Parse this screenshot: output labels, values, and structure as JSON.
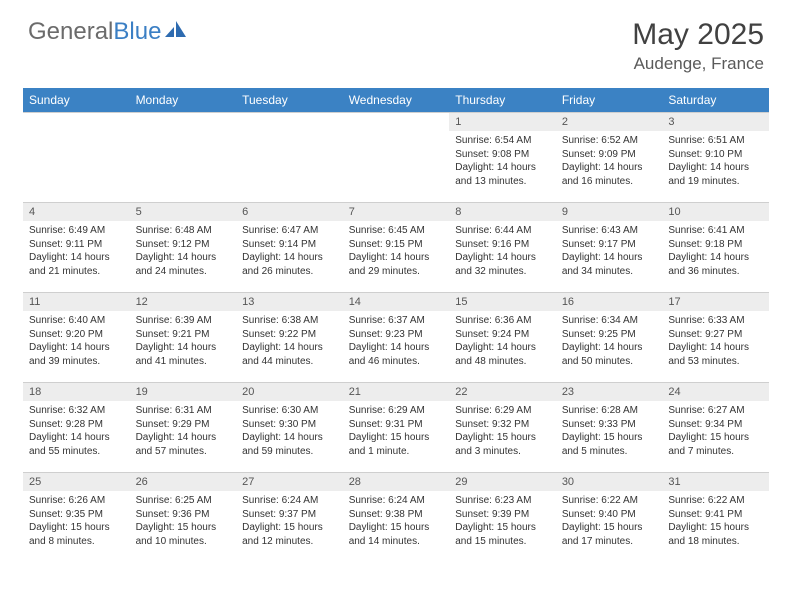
{
  "brand": {
    "part1": "General",
    "part2": "Blue"
  },
  "title": "May 2025",
  "location": "Audenge, France",
  "colors": {
    "header_bg": "#3b82c4",
    "header_text": "#ffffff",
    "daynum_bg": "#ededed",
    "border": "#cfcfcf",
    "logo_gray": "#6b6b6b",
    "logo_blue": "#3b7fc4"
  },
  "weekdays": [
    "Sunday",
    "Monday",
    "Tuesday",
    "Wednesday",
    "Thursday",
    "Friday",
    "Saturday"
  ],
  "weeks": [
    [
      {
        "empty": true
      },
      {
        "empty": true
      },
      {
        "empty": true
      },
      {
        "empty": true
      },
      {
        "n": "1",
        "sr": "Sunrise: 6:54 AM",
        "ss": "Sunset: 9:08 PM",
        "d1": "Daylight: 14 hours",
        "d2": "and 13 minutes."
      },
      {
        "n": "2",
        "sr": "Sunrise: 6:52 AM",
        "ss": "Sunset: 9:09 PM",
        "d1": "Daylight: 14 hours",
        "d2": "and 16 minutes."
      },
      {
        "n": "3",
        "sr": "Sunrise: 6:51 AM",
        "ss": "Sunset: 9:10 PM",
        "d1": "Daylight: 14 hours",
        "d2": "and 19 minutes."
      }
    ],
    [
      {
        "n": "4",
        "sr": "Sunrise: 6:49 AM",
        "ss": "Sunset: 9:11 PM",
        "d1": "Daylight: 14 hours",
        "d2": "and 21 minutes."
      },
      {
        "n": "5",
        "sr": "Sunrise: 6:48 AM",
        "ss": "Sunset: 9:12 PM",
        "d1": "Daylight: 14 hours",
        "d2": "and 24 minutes."
      },
      {
        "n": "6",
        "sr": "Sunrise: 6:47 AM",
        "ss": "Sunset: 9:14 PM",
        "d1": "Daylight: 14 hours",
        "d2": "and 26 minutes."
      },
      {
        "n": "7",
        "sr": "Sunrise: 6:45 AM",
        "ss": "Sunset: 9:15 PM",
        "d1": "Daylight: 14 hours",
        "d2": "and 29 minutes."
      },
      {
        "n": "8",
        "sr": "Sunrise: 6:44 AM",
        "ss": "Sunset: 9:16 PM",
        "d1": "Daylight: 14 hours",
        "d2": "and 32 minutes."
      },
      {
        "n": "9",
        "sr": "Sunrise: 6:43 AM",
        "ss": "Sunset: 9:17 PM",
        "d1": "Daylight: 14 hours",
        "d2": "and 34 minutes."
      },
      {
        "n": "10",
        "sr": "Sunrise: 6:41 AM",
        "ss": "Sunset: 9:18 PM",
        "d1": "Daylight: 14 hours",
        "d2": "and 36 minutes."
      }
    ],
    [
      {
        "n": "11",
        "sr": "Sunrise: 6:40 AM",
        "ss": "Sunset: 9:20 PM",
        "d1": "Daylight: 14 hours",
        "d2": "and 39 minutes."
      },
      {
        "n": "12",
        "sr": "Sunrise: 6:39 AM",
        "ss": "Sunset: 9:21 PM",
        "d1": "Daylight: 14 hours",
        "d2": "and 41 minutes."
      },
      {
        "n": "13",
        "sr": "Sunrise: 6:38 AM",
        "ss": "Sunset: 9:22 PM",
        "d1": "Daylight: 14 hours",
        "d2": "and 44 minutes."
      },
      {
        "n": "14",
        "sr": "Sunrise: 6:37 AM",
        "ss": "Sunset: 9:23 PM",
        "d1": "Daylight: 14 hours",
        "d2": "and 46 minutes."
      },
      {
        "n": "15",
        "sr": "Sunrise: 6:36 AM",
        "ss": "Sunset: 9:24 PM",
        "d1": "Daylight: 14 hours",
        "d2": "and 48 minutes."
      },
      {
        "n": "16",
        "sr": "Sunrise: 6:34 AM",
        "ss": "Sunset: 9:25 PM",
        "d1": "Daylight: 14 hours",
        "d2": "and 50 minutes."
      },
      {
        "n": "17",
        "sr": "Sunrise: 6:33 AM",
        "ss": "Sunset: 9:27 PM",
        "d1": "Daylight: 14 hours",
        "d2": "and 53 minutes."
      }
    ],
    [
      {
        "n": "18",
        "sr": "Sunrise: 6:32 AM",
        "ss": "Sunset: 9:28 PM",
        "d1": "Daylight: 14 hours",
        "d2": "and 55 minutes."
      },
      {
        "n": "19",
        "sr": "Sunrise: 6:31 AM",
        "ss": "Sunset: 9:29 PM",
        "d1": "Daylight: 14 hours",
        "d2": "and 57 minutes."
      },
      {
        "n": "20",
        "sr": "Sunrise: 6:30 AM",
        "ss": "Sunset: 9:30 PM",
        "d1": "Daylight: 14 hours",
        "d2": "and 59 minutes."
      },
      {
        "n": "21",
        "sr": "Sunrise: 6:29 AM",
        "ss": "Sunset: 9:31 PM",
        "d1": "Daylight: 15 hours",
        "d2": "and 1 minute."
      },
      {
        "n": "22",
        "sr": "Sunrise: 6:29 AM",
        "ss": "Sunset: 9:32 PM",
        "d1": "Daylight: 15 hours",
        "d2": "and 3 minutes."
      },
      {
        "n": "23",
        "sr": "Sunrise: 6:28 AM",
        "ss": "Sunset: 9:33 PM",
        "d1": "Daylight: 15 hours",
        "d2": "and 5 minutes."
      },
      {
        "n": "24",
        "sr": "Sunrise: 6:27 AM",
        "ss": "Sunset: 9:34 PM",
        "d1": "Daylight: 15 hours",
        "d2": "and 7 minutes."
      }
    ],
    [
      {
        "n": "25",
        "sr": "Sunrise: 6:26 AM",
        "ss": "Sunset: 9:35 PM",
        "d1": "Daylight: 15 hours",
        "d2": "and 8 minutes."
      },
      {
        "n": "26",
        "sr": "Sunrise: 6:25 AM",
        "ss": "Sunset: 9:36 PM",
        "d1": "Daylight: 15 hours",
        "d2": "and 10 minutes."
      },
      {
        "n": "27",
        "sr": "Sunrise: 6:24 AM",
        "ss": "Sunset: 9:37 PM",
        "d1": "Daylight: 15 hours",
        "d2": "and 12 minutes."
      },
      {
        "n": "28",
        "sr": "Sunrise: 6:24 AM",
        "ss": "Sunset: 9:38 PM",
        "d1": "Daylight: 15 hours",
        "d2": "and 14 minutes."
      },
      {
        "n": "29",
        "sr": "Sunrise: 6:23 AM",
        "ss": "Sunset: 9:39 PM",
        "d1": "Daylight: 15 hours",
        "d2": "and 15 minutes."
      },
      {
        "n": "30",
        "sr": "Sunrise: 6:22 AM",
        "ss": "Sunset: 9:40 PM",
        "d1": "Daylight: 15 hours",
        "d2": "and 17 minutes."
      },
      {
        "n": "31",
        "sr": "Sunrise: 6:22 AM",
        "ss": "Sunset: 9:41 PM",
        "d1": "Daylight: 15 hours",
        "d2": "and 18 minutes."
      }
    ]
  ]
}
